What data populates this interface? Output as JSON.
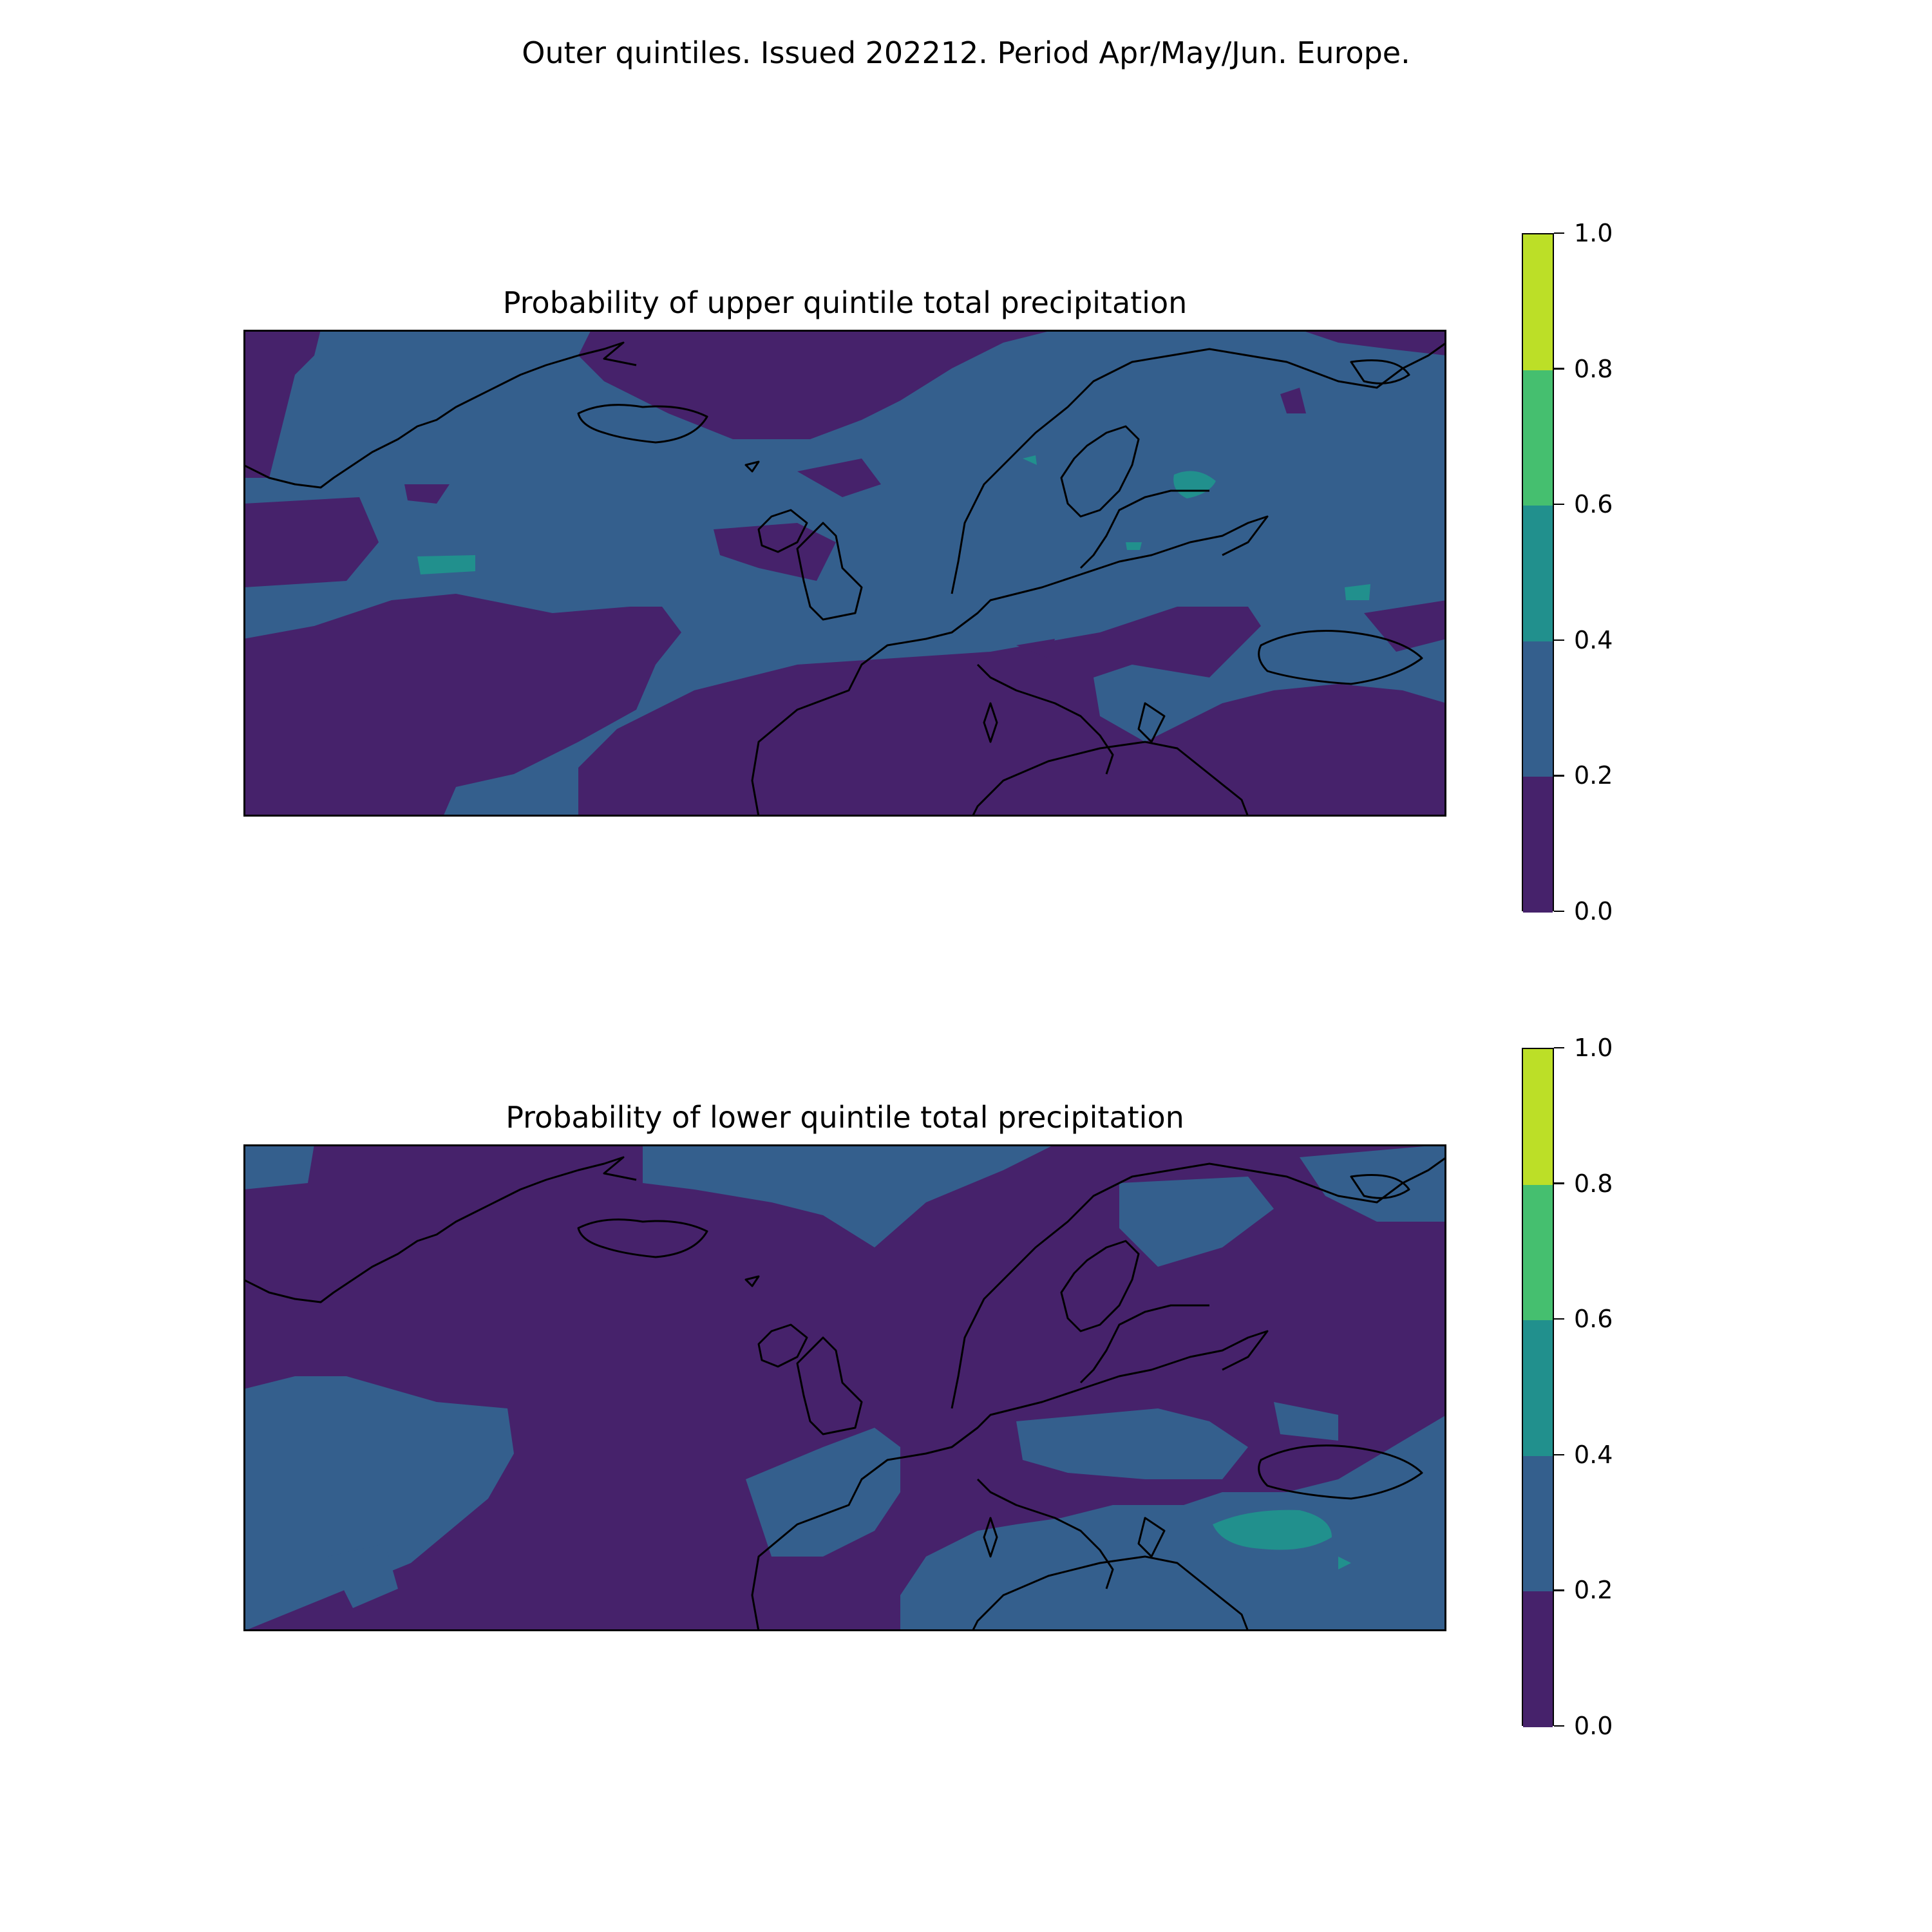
{
  "suptitle": "Outer quintiles. Issued 202212. Period Apr/May/Jun. Europe.",
  "colormap": {
    "name": "viridis",
    "levels": [
      0.0,
      0.2,
      0.4,
      0.6,
      0.8,
      1.0
    ],
    "band_colors": [
      "#46226b",
      "#345f8d",
      "#21908d",
      "#45bf6f",
      "#bcdf27"
    ],
    "tick_labels": [
      "0.0",
      "0.2",
      "0.4",
      "0.6",
      "0.8",
      "1.0"
    ]
  },
  "coastline_color": "#000000",
  "panels": [
    {
      "title": "Probability of upper quintile total precipitation",
      "dominant_category": "0.2–0.4",
      "notes": "0.4–0.6 patches near Lake Ladoga, mid-Atlantic and western Russia"
    },
    {
      "title": "Probability of lower quintile total precipitation",
      "dominant_category": "0.0–0.2",
      "notes": "0.4–0.6 patch over the Black Sea"
    }
  ]
}
